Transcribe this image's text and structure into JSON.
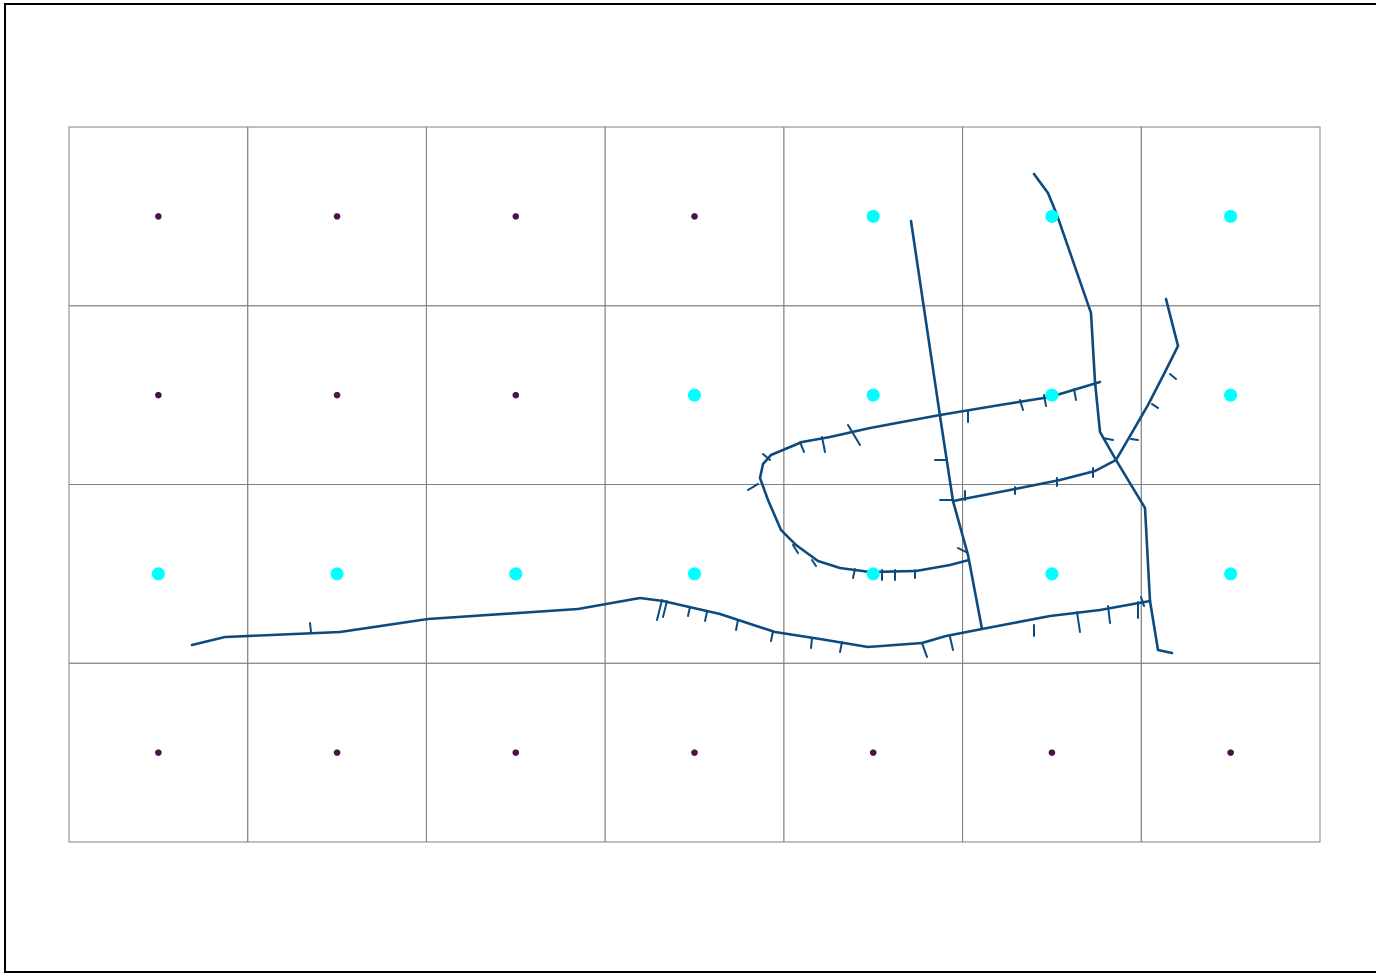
{
  "map": {
    "grid": {
      "columns": 7,
      "rows": 4,
      "line_color": "#808080"
    },
    "points": {
      "selected_color": "#00ffff",
      "unselected_color": "#4a1446",
      "rows": [
        [
          false,
          false,
          false,
          false,
          true,
          true,
          true
        ],
        [
          false,
          false,
          false,
          true,
          true,
          true,
          true
        ],
        [
          true,
          true,
          true,
          true,
          true,
          true,
          true
        ],
        [
          false,
          false,
          false,
          false,
          false,
          false,
          false
        ]
      ]
    },
    "network": {
      "color": "#0d4a7e",
      "feature_type": "road-network"
    }
  }
}
